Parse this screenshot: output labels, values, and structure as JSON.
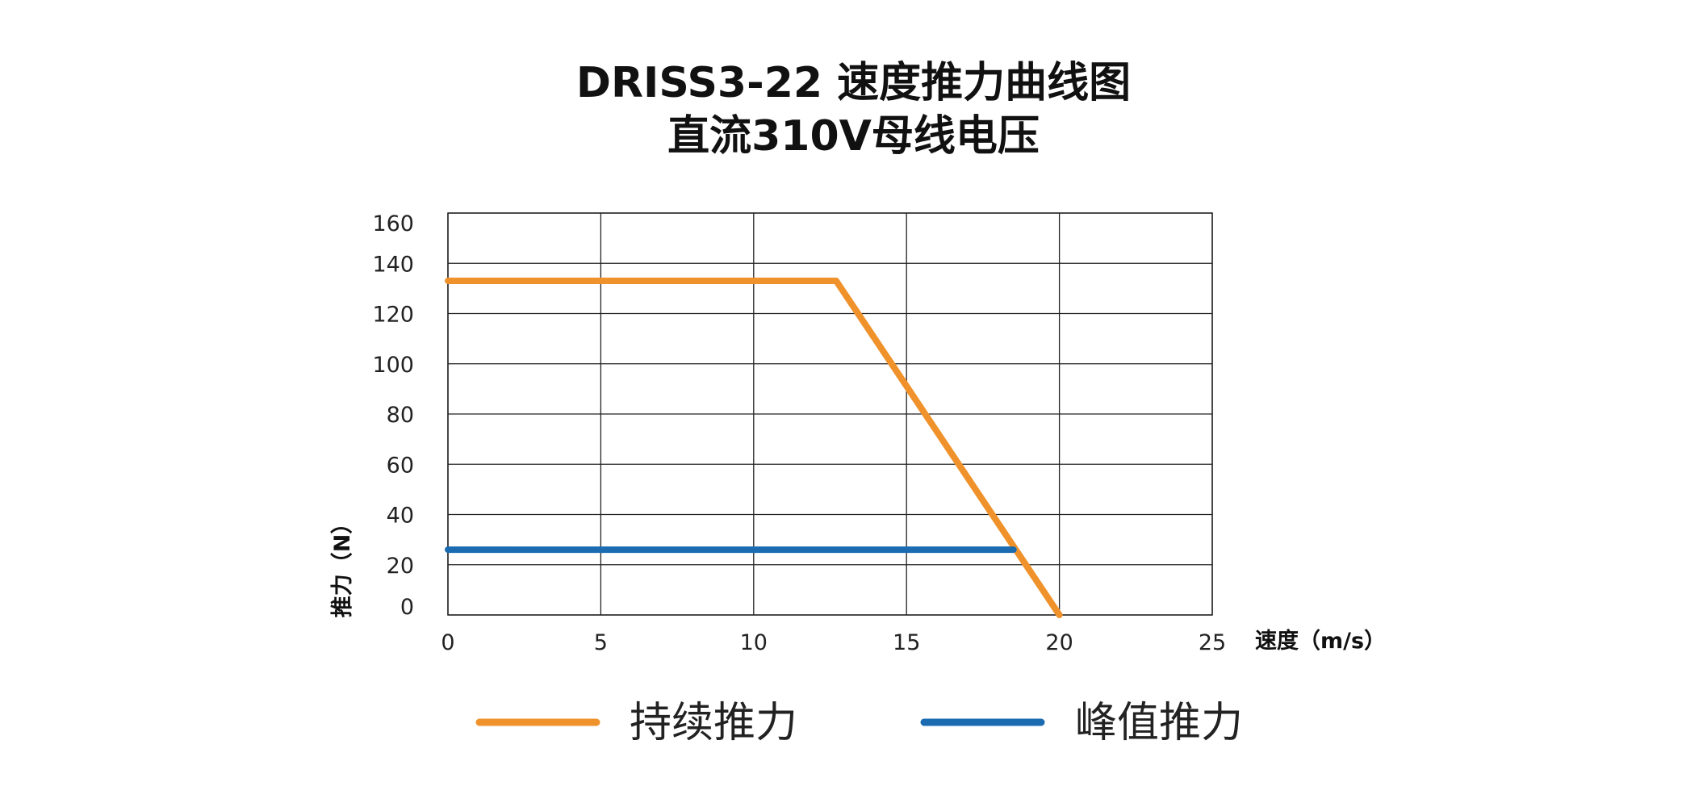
{
  "title": {
    "line1": "DRISS3-22 速度推力曲线图",
    "line2": "直流310V母线电压"
  },
  "chart_data": {
    "type": "line",
    "title": "DRISS3-22 速度推力曲线图 直流310V母线电压",
    "xlabel": "速度（m/s）",
    "ylabel": "推力（N）",
    "xlim": [
      0,
      25
    ],
    "ylim": [
      0,
      160
    ],
    "xticks": [
      0,
      5,
      10,
      15,
      20,
      25
    ],
    "yticks": [
      0,
      20,
      40,
      60,
      80,
      100,
      120,
      140,
      160
    ],
    "grid": true,
    "legend_position": "bottom",
    "series": [
      {
        "name": "持续推力",
        "color": "#F0922B",
        "x": [
          0,
          12.7,
          20
        ],
        "y": [
          133,
          133,
          0
        ]
      },
      {
        "name": "峰值推力",
        "color": "#1A6BB0",
        "x": [
          0,
          18.5
        ],
        "y": [
          26,
          26
        ]
      }
    ]
  }
}
